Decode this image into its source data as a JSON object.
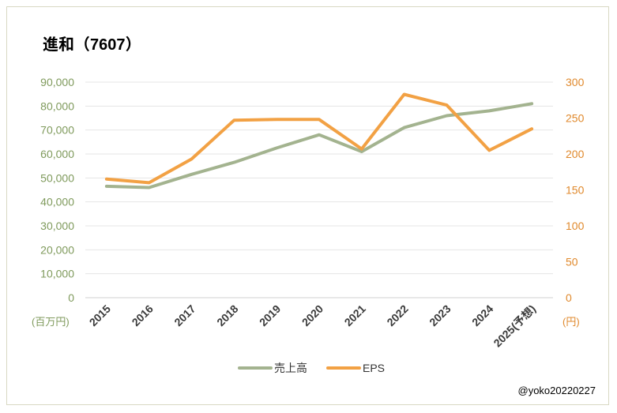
{
  "chart_data": {
    "type": "line",
    "title": "進和（7607）",
    "categories": [
      "2015",
      "2016",
      "2017",
      "2018",
      "2019",
      "2020",
      "2021",
      "2022",
      "2023",
      "2024",
      "2025(予想)"
    ],
    "series": [
      {
        "name": "売上高",
        "axis": "left",
        "color": "#a3b38f",
        "values": [
          46500,
          46000,
          51500,
          56500,
          62500,
          68000,
          61000,
          71000,
          76000,
          78000,
          81000
        ]
      },
      {
        "name": "EPS",
        "axis": "right",
        "color": "#f2a144",
        "values": [
          165,
          160,
          193,
          247,
          248,
          248,
          207,
          283,
          268,
          205,
          235
        ]
      }
    ],
    "y_left": {
      "min": 0,
      "max": 90000,
      "step": 10000,
      "unit": "(百万円)",
      "ticks": [
        "0",
        "10,000",
        "20,000",
        "30,000",
        "40,000",
        "50,000",
        "60,000",
        "70,000",
        "80,000",
        "90,000"
      ]
    },
    "y_right": {
      "min": 0,
      "max": 300,
      "step": 50,
      "unit": "(円)",
      "ticks": [
        "0",
        "50",
        "100",
        "150",
        "200",
        "250",
        "300"
      ]
    },
    "grid": true,
    "legend": "bottom"
  },
  "credit": "@yoko20220227"
}
